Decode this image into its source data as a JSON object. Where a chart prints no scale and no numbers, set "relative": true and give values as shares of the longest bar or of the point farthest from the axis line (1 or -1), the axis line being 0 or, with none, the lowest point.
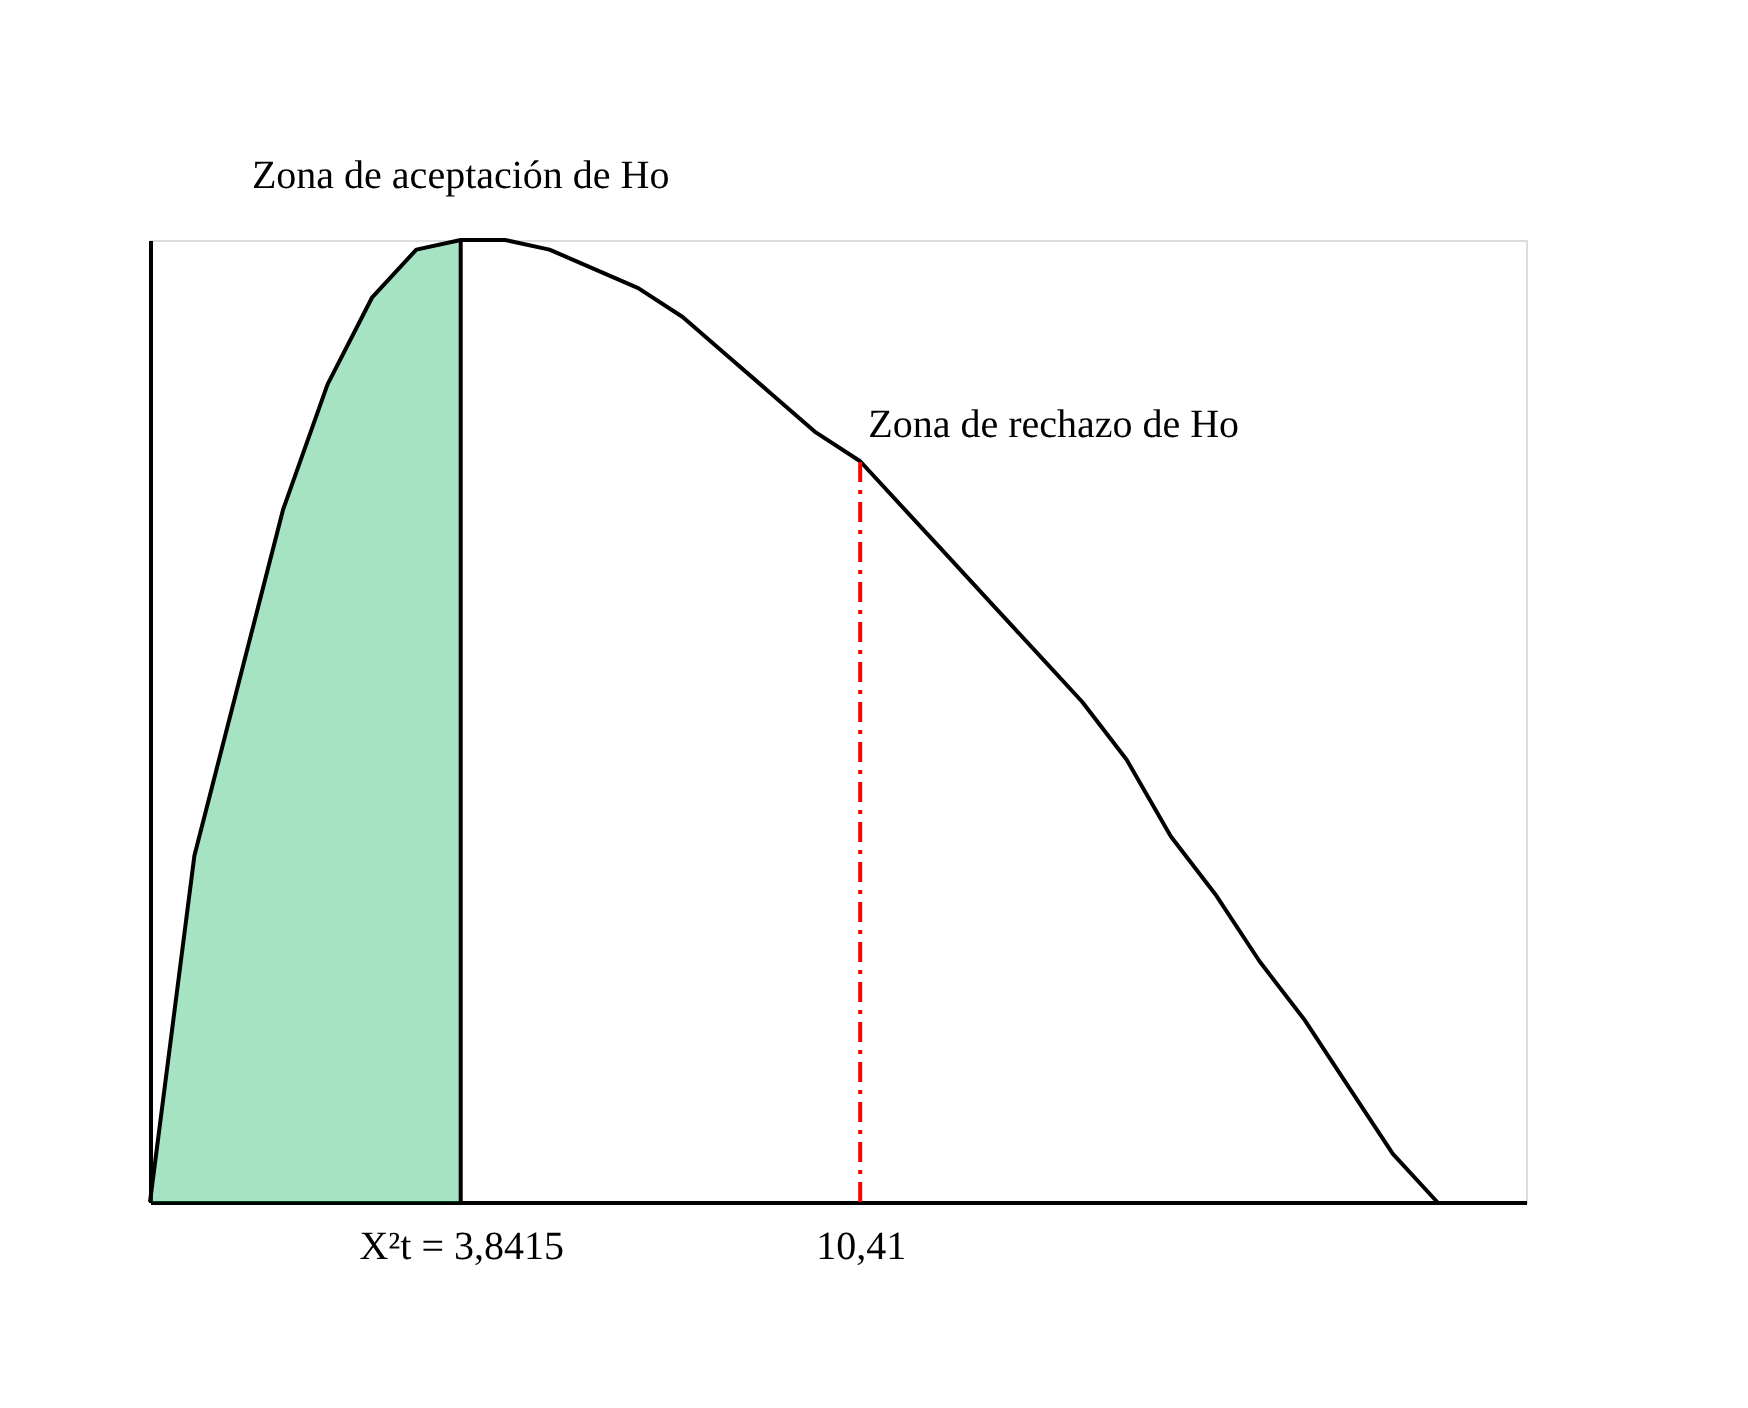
{
  "chart_data": {
    "type": "line",
    "relative": true,
    "categories": [
      null,
      null,
      null,
      null,
      null,
      null,
      null,
      "X²t = 3,8415",
      null,
      null,
      null,
      null,
      null,
      null,
      null,
      null,
      "10,41",
      null,
      null,
      null,
      null,
      null,
      null,
      null,
      null,
      null,
      null,
      null,
      null,
      null,
      null,
      null
    ],
    "series": [
      {
        "type": "area",
        "color": "#00b050",
        "values": [
          0,
          0.36,
          0.54,
          0.72,
          0.85,
          0.94,
          0.99,
          1,
          null,
          null,
          null,
          null,
          null,
          null,
          null,
          null,
          null,
          null,
          null,
          null,
          null,
          null,
          null,
          null,
          null,
          null,
          null,
          null,
          null,
          null,
          null,
          null
        ]
      },
      {
        "color": "#000000",
        "values": [
          0,
          0.36,
          0.54,
          0.72,
          0.85,
          0.94,
          0.99,
          1,
          1,
          0.99,
          0.97,
          0.95,
          0.92,
          0.88,
          0.84,
          0.8,
          0.77,
          0.72,
          0.67,
          0.62,
          0.57,
          0.52,
          0.46,
          0.38,
          0.32,
          0.25,
          0.19,
          0.12,
          0.05,
          0,
          null,
          null
        ]
      }
    ],
    "ref_lines": [
      {
        "axis": "x",
        "value": "X²t = 3,8415",
        "color": "#000000",
        "line_style": "solid"
      },
      {
        "axis": "x",
        "value": "10,41",
        "color": "#ff0000",
        "line_style": "dashdot"
      }
    ],
    "annotations": [
      {
        "text": "Zona de aceptación de Ho",
        "x": "X²t = 3,8415",
        "y": 1
      },
      {
        "text": "Zona de rechazo de Ho",
        "x": "10,41",
        "y": 0.77
      }
    ],
    "grid": false,
    "marker": "none",
    "line_style": "solid"
  }
}
